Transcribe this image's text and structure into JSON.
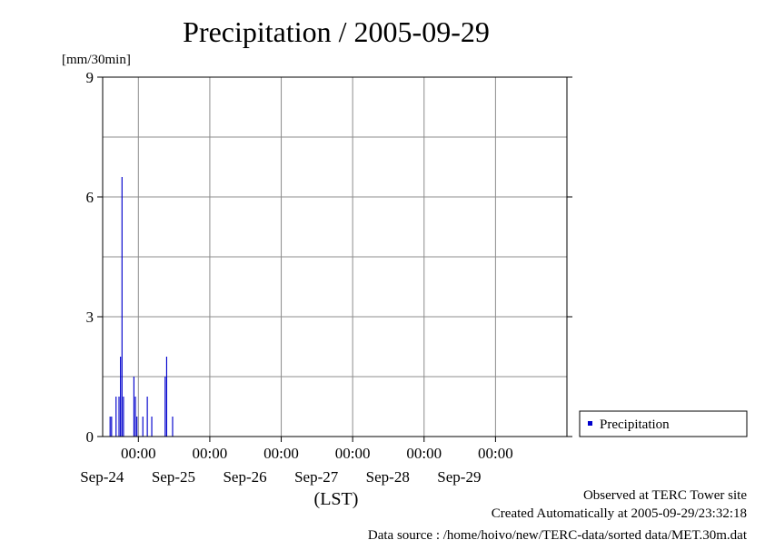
{
  "chart_data": {
    "type": "bar",
    "title": "Precipitation / 2005-09-29",
    "y_unit": "[mm/30min]",
    "xlabel": "(LST)",
    "ylim": [
      0,
      9
    ],
    "yticks": [
      0,
      3,
      6,
      9
    ],
    "ygrid_minor": [
      1.5,
      4.5,
      7.5
    ],
    "x_start": "2005-09-23T12:00",
    "x_end": "2005-09-29T24:00",
    "xticks": [
      {
        "time": "2005-09-24T00:00",
        "label": "00:00",
        "date": "Sep-24"
      },
      {
        "time": "2005-09-25T00:00",
        "label": "00:00",
        "date": "Sep-25"
      },
      {
        "time": "2005-09-26T00:00",
        "label": "00:00",
        "date": "Sep-26"
      },
      {
        "time": "2005-09-27T00:00",
        "label": "00:00",
        "date": "Sep-27"
      },
      {
        "time": "2005-09-28T00:00",
        "label": "00:00",
        "date": "Sep-28"
      },
      {
        "time": "2005-09-29T00:00",
        "label": "00:00",
        "date": "Sep-29"
      }
    ],
    "grid": true,
    "legend_position": "right",
    "series": [
      {
        "name": "Precipitation",
        "color": "#0000cc",
        "points": [
          {
            "t": "2005-09-23T14:30",
            "v": 0.5
          },
          {
            "t": "2005-09-23T15:00",
            "v": 0.5
          },
          {
            "t": "2005-09-23T16:30",
            "v": 1.0
          },
          {
            "t": "2005-09-23T17:30",
            "v": 1.0
          },
          {
            "t": "2005-09-23T18:00",
            "v": 2.0
          },
          {
            "t": "2005-09-23T18:30",
            "v": 6.5
          },
          {
            "t": "2005-09-23T19:00",
            "v": 1.0
          },
          {
            "t": "2005-09-23T22:30",
            "v": 1.5
          },
          {
            "t": "2005-09-23T23:00",
            "v": 1.0
          },
          {
            "t": "2005-09-23T23:30",
            "v": 0.5
          },
          {
            "t": "2005-09-24T01:30",
            "v": 0.5
          },
          {
            "t": "2005-09-24T03:00",
            "v": 1.0
          },
          {
            "t": "2005-09-24T04:30",
            "v": 0.5
          },
          {
            "t": "2005-09-24T09:00",
            "v": 1.5
          },
          {
            "t": "2005-09-24T09:30",
            "v": 2.0
          },
          {
            "t": "2005-09-24T11:30",
            "v": 0.5
          }
        ]
      }
    ]
  },
  "footer": {
    "line1": "Observed at TERC Tower site",
    "line2": "Created Automatically at 2005-09-29/23:32:18",
    "line3": "Data source : /home/hoivo/new/TERC-data/sorted  data/MET.30m.dat"
  }
}
